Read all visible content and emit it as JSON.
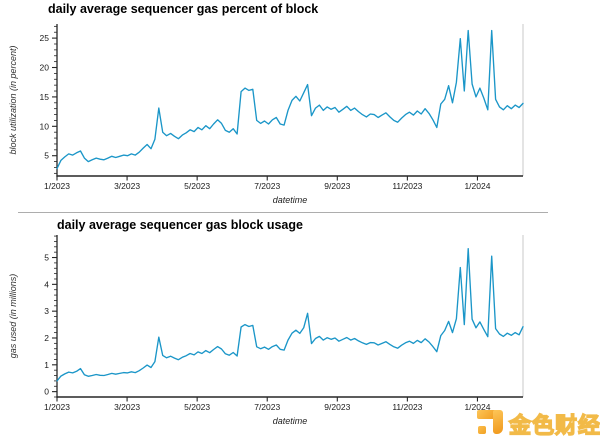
{
  "watermark": {
    "text": "金色财经",
    "logo_color": "#f6a31c"
  },
  "chart_data": [
    {
      "type": "line",
      "title": "daily average sequencer gas percent of block",
      "xlabel": "datetime",
      "ylabel": "block utilization (in percent)",
      "line_color": "#1b96c8",
      "x_tick_labels": [
        "1/2023",
        "3/2023",
        "5/2023",
        "7/2023",
        "9/2023",
        "11/2023",
        "1/2024"
      ],
      "x_tick_positions_months": [
        0,
        2,
        4,
        6,
        8,
        10,
        12
      ],
      "x_range_months": [
        0,
        13.3
      ],
      "y_tick_labels": [
        "5",
        "10",
        "15",
        "20",
        "25"
      ],
      "y_major_ticks": [
        5,
        10,
        15,
        20,
        25
      ],
      "y_minor_step": 1,
      "ylim": [
        1.55,
        27.4
      ],
      "grid": false,
      "legend": null,
      "values": [
        2.8,
        4.2,
        4.8,
        5.3,
        5.1,
        5.5,
        5.8,
        4.6,
        4.0,
        4.3,
        4.6,
        4.4,
        4.3,
        4.6,
        4.9,
        4.7,
        4.9,
        5.1,
        5.0,
        5.3,
        5.1,
        5.6,
        6.3,
        6.9,
        6.2,
        7.8,
        13.1,
        9.0,
        8.4,
        8.8,
        8.3,
        7.9,
        8.5,
        8.9,
        9.4,
        9.1,
        9.8,
        9.4,
        10.1,
        9.6,
        10.4,
        11.1,
        10.5,
        9.3,
        9.0,
        9.6,
        8.7,
        15.9,
        16.5,
        16.1,
        16.3,
        11.0,
        10.5,
        10.9,
        10.4,
        11.1,
        11.5,
        10.4,
        10.2,
        12.7,
        14.4,
        15.1,
        14.3,
        15.7,
        17.1,
        11.8,
        13.1,
        13.6,
        12.7,
        13.3,
        12.9,
        13.2,
        12.4,
        12.9,
        13.4,
        12.7,
        13.1,
        12.5,
        12.0,
        11.6,
        12.1,
        12.0,
        11.5,
        11.9,
        12.3,
        11.6,
        11.0,
        10.7,
        11.4,
        12.0,
        12.4,
        11.9,
        12.6,
        12.1,
        13.0,
        12.2,
        11.1,
        9.8,
        13.8,
        14.6,
        16.9,
        14.0,
        17.5,
        24.9,
        16.0,
        26.3,
        17.2,
        15.0,
        16.5,
        14.8,
        12.8,
        26.3,
        14.6,
        13.3,
        12.8,
        13.5,
        13.0,
        13.6,
        13.2,
        13.9
      ]
    },
    {
      "type": "line",
      "title": "daily average sequencer gas block usage",
      "xlabel": "datetime",
      "ylabel": "gas used (in millions)",
      "line_color": "#1b96c8",
      "x_tick_labels": [
        "1/2023",
        "3/2023",
        "5/2023",
        "7/2023",
        "9/2023",
        "11/2023",
        "1/2024"
      ],
      "x_tick_positions_months": [
        0,
        2,
        4,
        6,
        8,
        10,
        12
      ],
      "x_range_months": [
        0,
        13.3
      ],
      "y_tick_labels": [
        "0",
        "1",
        "2",
        "3",
        "4",
        "5"
      ],
      "y_major_ticks": [
        0,
        1,
        2,
        3,
        4,
        5
      ],
      "y_minor_step": 0.2,
      "ylim": [
        -0.2,
        5.84
      ],
      "grid": false,
      "legend": null,
      "values": [
        0.4,
        0.58,
        0.66,
        0.73,
        0.7,
        0.76,
        0.86,
        0.63,
        0.57,
        0.6,
        0.64,
        0.61,
        0.6,
        0.64,
        0.68,
        0.65,
        0.68,
        0.71,
        0.7,
        0.74,
        0.71,
        0.78,
        0.88,
        0.99,
        0.9,
        1.12,
        2.03,
        1.35,
        1.26,
        1.32,
        1.25,
        1.19,
        1.28,
        1.34,
        1.42,
        1.37,
        1.48,
        1.42,
        1.53,
        1.45,
        1.57,
        1.68,
        1.59,
        1.41,
        1.36,
        1.46,
        1.33,
        2.41,
        2.5,
        2.43,
        2.47,
        1.67,
        1.6,
        1.66,
        1.58,
        1.68,
        1.74,
        1.58,
        1.55,
        1.92,
        2.18,
        2.29,
        2.17,
        2.38,
        2.92,
        1.79,
        1.98,
        2.06,
        1.92,
        2.01,
        1.95,
        2.0,
        1.88,
        1.95,
        2.02,
        1.92,
        1.98,
        1.89,
        1.82,
        1.76,
        1.83,
        1.82,
        1.74,
        1.8,
        1.86,
        1.76,
        1.67,
        1.62,
        1.73,
        1.82,
        1.88,
        1.8,
        1.91,
        1.83,
        1.97,
        1.85,
        1.68,
        1.49,
        2.09,
        2.28,
        2.62,
        2.2,
        2.72,
        4.63,
        2.5,
        5.33,
        2.7,
        2.38,
        2.6,
        2.32,
        2.05,
        5.05,
        2.35,
        2.15,
        2.06,
        2.18,
        2.1,
        2.2,
        2.12,
        2.42
      ]
    }
  ]
}
